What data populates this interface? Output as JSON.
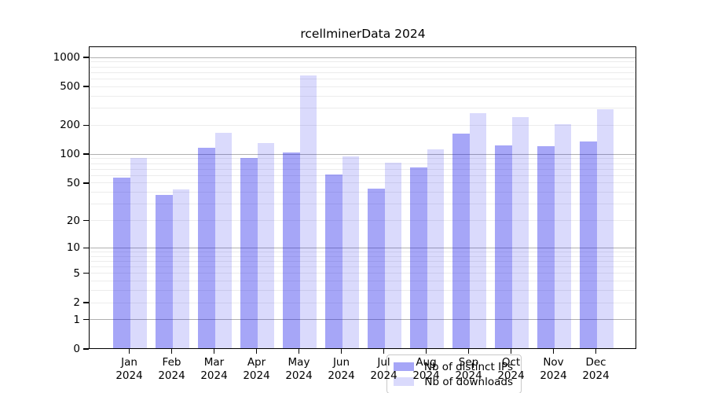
{
  "title": "rcellminerData 2024",
  "chart_data": {
    "type": "bar",
    "scale": "log1p",
    "title": "rcellminerData 2024",
    "xlabel": "",
    "ylabel": "",
    "categories": [
      "Jan",
      "Feb",
      "Mar",
      "Apr",
      "May",
      "Jun",
      "Jul",
      "Aug",
      "Sep",
      "Oct",
      "Nov",
      "Dec"
    ],
    "category_year": "2024",
    "series": [
      {
        "name": "Nb of distinct IPs",
        "color": "rgba(20,20,235,0.38)",
        "values": [
          56,
          37,
          115,
          89,
          102,
          60,
          43,
          71,
          160,
          122,
          119,
          132
        ]
      },
      {
        "name": "Nb of downloads",
        "color": "rgba(20,20,235,0.155)",
        "values": [
          90,
          42,
          165,
          128,
          640,
          93,
          80,
          110,
          260,
          239,
          200,
          285
        ]
      }
    ],
    "y_ticks": [
      0,
      1,
      2,
      5,
      10,
      20,
      50,
      100,
      200,
      500,
      1000
    ],
    "ylim": [
      0,
      1290
    ],
    "grid": {
      "major_values": [
        1,
        10,
        100,
        1000
      ],
      "major_color": "#b0b0b0",
      "minor_color": "#ececec"
    },
    "legend_position": "bottom-center"
  }
}
